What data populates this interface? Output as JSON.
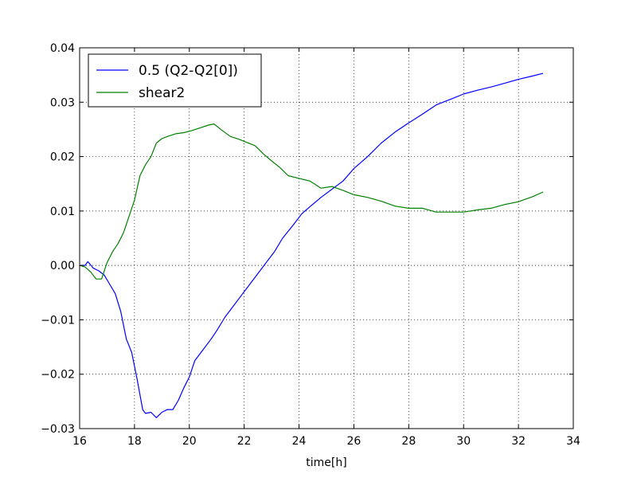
{
  "chart_data": {
    "type": "line",
    "title": "",
    "xlabel": "time[h]",
    "ylabel": "",
    "xlim": [
      16,
      34
    ],
    "ylim": [
      -0.03,
      0.04
    ],
    "xticks": [
      16,
      18,
      20,
      22,
      24,
      26,
      28,
      30,
      32,
      34
    ],
    "yticks": [
      -0.03,
      -0.02,
      -0.01,
      0.0,
      0.01,
      0.02,
      0.03,
      0.04
    ],
    "xtick_labels": [
      "16",
      "18",
      "20",
      "22",
      "24",
      "26",
      "28",
      "30",
      "32",
      "34"
    ],
    "ytick_labels": [
      "−0.03",
      "−0.02",
      "−0.01",
      "0.00",
      "0.01",
      "0.02",
      "0.03",
      "0.04"
    ],
    "grid": true,
    "legend_position": "top-left",
    "series": [
      {
        "name": "0.5 (Q2-Q2[0])",
        "color": "#0000ff",
        "x": [
          16.0,
          16.2,
          16.3,
          16.5,
          16.7,
          16.9,
          17.1,
          17.3,
          17.5,
          17.7,
          17.9,
          18.1,
          18.3,
          18.4,
          18.6,
          18.8,
          19.0,
          19.2,
          19.4,
          19.6,
          19.8,
          20.0,
          20.2,
          20.5,
          20.8,
          21.0,
          21.3,
          21.6,
          21.9,
          22.2,
          22.5,
          22.8,
          23.1,
          23.4,
          23.8,
          24.1,
          24.4,
          24.8,
          25.2,
          25.6,
          26.0,
          26.5,
          27.0,
          27.5,
          28.0,
          28.5,
          29.0,
          29.5,
          30.0,
          30.5,
          31.0,
          31.5,
          32.0,
          32.5,
          32.9
        ],
        "y": [
          0.0,
          0.0,
          0.0007,
          -0.0005,
          -0.001,
          -0.0018,
          -0.0035,
          -0.0052,
          -0.0085,
          -0.0135,
          -0.016,
          -0.021,
          -0.0265,
          -0.0272,
          -0.027,
          -0.028,
          -0.027,
          -0.0265,
          -0.0265,
          -0.0248,
          -0.0225,
          -0.0205,
          -0.0175,
          -0.0155,
          -0.0135,
          -0.012,
          -0.0095,
          -0.0075,
          -0.0055,
          -0.0035,
          -0.0015,
          0.0005,
          0.0025,
          0.005,
          0.0075,
          0.0095,
          0.0108,
          0.0125,
          0.014,
          0.0155,
          0.0178,
          0.02,
          0.0225,
          0.0245,
          0.0262,
          0.0278,
          0.0295,
          0.0305,
          0.0315,
          0.0322,
          0.0328,
          0.0335,
          0.0342,
          0.0348,
          0.0353
        ]
      },
      {
        "name": "shear2",
        "color": "#008000",
        "x": [
          16.0,
          16.2,
          16.4,
          16.6,
          16.8,
          17.0,
          17.2,
          17.4,
          17.6,
          17.8,
          18.0,
          18.2,
          18.4,
          18.6,
          18.8,
          19.0,
          19.2,
          19.5,
          19.8,
          20.1,
          20.4,
          20.7,
          20.9,
          21.2,
          21.5,
          21.8,
          22.1,
          22.4,
          22.7,
          23.0,
          23.3,
          23.6,
          24.0,
          24.4,
          24.8,
          25.2,
          25.6,
          26.0,
          26.5,
          27.0,
          27.5,
          28.0,
          28.5,
          29.0,
          29.5,
          30.0,
          30.5,
          31.0,
          31.5,
          32.0,
          32.5,
          32.9
        ],
        "y": [
          0.0,
          -0.0003,
          -0.0012,
          -0.0025,
          -0.0025,
          0.0005,
          0.0025,
          0.004,
          0.006,
          0.009,
          0.012,
          0.0165,
          0.0185,
          0.02,
          0.0225,
          0.0233,
          0.0237,
          0.0242,
          0.0244,
          0.0248,
          0.0253,
          0.0258,
          0.026,
          0.0248,
          0.0237,
          0.0232,
          0.0226,
          0.022,
          0.0205,
          0.0192,
          0.018,
          0.0165,
          0.016,
          0.0155,
          0.0142,
          0.0145,
          0.0138,
          0.013,
          0.0125,
          0.0118,
          0.0109,
          0.0105,
          0.0105,
          0.0098,
          0.0098,
          0.0098,
          0.0102,
          0.0105,
          0.0112,
          0.0117,
          0.0126,
          0.0135
        ]
      }
    ]
  }
}
